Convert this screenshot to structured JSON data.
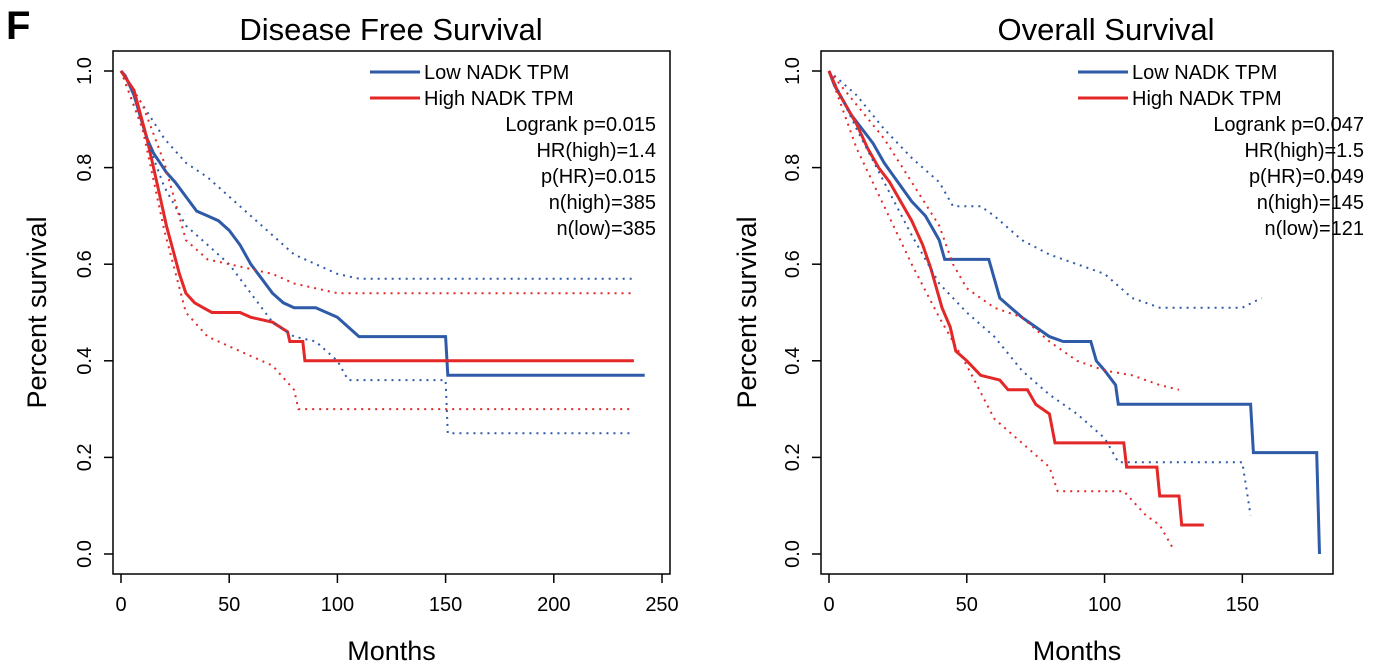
{
  "panel_label": "F",
  "colors": {
    "low": "#2e5aa8",
    "high": "#e42727"
  },
  "chart_data": [
    {
      "type": "line",
      "title": "Disease Free Survival",
      "xlabel": "Months",
      "ylabel": "Percent survival",
      "xlim": [
        0,
        250
      ],
      "ylim": [
        0,
        1
      ],
      "x_ticks": [
        "0",
        "50",
        "100",
        "150",
        "200",
        "250"
      ],
      "y_ticks": [
        "0.0",
        "0.2",
        "0.4",
        "0.6",
        "0.8",
        "1.0"
      ],
      "grid": false,
      "legend_position": "top-right",
      "stats": [
        "Logrank p=0.015",
        "HR(high)=1.4",
        "p(HR)=0.015",
        "n(high)=385",
        "n(low)=385"
      ],
      "series": [
        {
          "name": "Low NADK TPM",
          "style": "solid",
          "points": [
            [
              0,
              1
            ],
            [
              2,
              0.99
            ],
            [
              4,
              0.97
            ],
            [
              6,
              0.95
            ],
            [
              8,
              0.92
            ],
            [
              10,
              0.89
            ],
            [
              12,
              0.86
            ],
            [
              15,
              0.83
            ],
            [
              18,
              0.81
            ],
            [
              21,
              0.79
            ],
            [
              25,
              0.77
            ],
            [
              30,
              0.74
            ],
            [
              35,
              0.71
            ],
            [
              40,
              0.7
            ],
            [
              45,
              0.69
            ],
            [
              50,
              0.67
            ],
            [
              55,
              0.64
            ],
            [
              60,
              0.6
            ],
            [
              65,
              0.57
            ],
            [
              70,
              0.54
            ],
            [
              75,
              0.52
            ],
            [
              80,
              0.51
            ],
            [
              90,
              0.51
            ],
            [
              100,
              0.49
            ],
            [
              105,
              0.47
            ],
            [
              110,
              0.45
            ],
            [
              150,
              0.45
            ],
            [
              151,
              0.37
            ],
            [
              242,
              0.37
            ]
          ]
        },
        {
          "name": "High NADK TPM",
          "style": "solid",
          "points": [
            [
              0,
              1
            ],
            [
              3,
              0.98
            ],
            [
              6,
              0.96
            ],
            [
              9,
              0.91
            ],
            [
              12,
              0.86
            ],
            [
              15,
              0.8
            ],
            [
              18,
              0.74
            ],
            [
              21,
              0.68
            ],
            [
              24,
              0.63
            ],
            [
              27,
              0.58
            ],
            [
              30,
              0.54
            ],
            [
              34,
              0.52
            ],
            [
              38,
              0.51
            ],
            [
              42,
              0.5
            ],
            [
              55,
              0.5
            ],
            [
              60,
              0.49
            ],
            [
              70,
              0.48
            ],
            [
              77,
              0.46
            ],
            [
              78,
              0.44
            ],
            [
              84,
              0.44
            ],
            [
              85,
              0.4
            ],
            [
              237,
              0.4
            ]
          ]
        },
        {
          "name": "",
          "style": "dotted",
          "points": [
            [
              0,
              1
            ],
            [
              10,
              0.93
            ],
            [
              20,
              0.86
            ],
            [
              30,
              0.81
            ],
            [
              40,
              0.78
            ],
            [
              50,
              0.74
            ],
            [
              60,
              0.7
            ],
            [
              70,
              0.66
            ],
            [
              80,
              0.62
            ],
            [
              90,
              0.6
            ],
            [
              100,
              0.58
            ],
            [
              110,
              0.57
            ],
            [
              237,
              0.57
            ]
          ]
        },
        {
          "name": "",
          "style": "dotted",
          "points": [
            [
              0,
              1
            ],
            [
              10,
              0.88
            ],
            [
              20,
              0.76
            ],
            [
              30,
              0.68
            ],
            [
              40,
              0.64
            ],
            [
              50,
              0.6
            ],
            [
              60,
              0.54
            ],
            [
              70,
              0.48
            ],
            [
              80,
              0.45
            ],
            [
              90,
              0.44
            ],
            [
              100,
              0.4
            ],
            [
              105,
              0.36
            ],
            [
              150,
              0.36
            ],
            [
              151,
              0.25
            ],
            [
              237,
              0.25
            ]
          ]
        },
        {
          "name": "",
          "style": "dotted",
          "points": [
            [
              0,
              1
            ],
            [
              10,
              0.93
            ],
            [
              20,
              0.81
            ],
            [
              30,
              0.65
            ],
            [
              40,
              0.61
            ],
            [
              50,
              0.6
            ],
            [
              60,
              0.59
            ],
            [
              70,
              0.58
            ],
            [
              80,
              0.56
            ],
            [
              90,
              0.55
            ],
            [
              100,
              0.54
            ],
            [
              237,
              0.54
            ]
          ]
        },
        {
          "name": "",
          "style": "dotted",
          "points": [
            [
              0,
              1
            ],
            [
              10,
              0.88
            ],
            [
              20,
              0.67
            ],
            [
              30,
              0.5
            ],
            [
              40,
              0.45
            ],
            [
              50,
              0.43
            ],
            [
              60,
              0.41
            ],
            [
              70,
              0.39
            ],
            [
              80,
              0.34
            ],
            [
              82,
              0.3
            ],
            [
              237,
              0.3
            ]
          ]
        }
      ]
    },
    {
      "type": "line",
      "title": "Overall Survival",
      "xlabel": "Months",
      "ylabel": "Percent survival",
      "xlim": [
        0,
        180
      ],
      "ylim": [
        0,
        1
      ],
      "x_ticks": [
        "0",
        "50",
        "100",
        "150"
      ],
      "y_ticks": [
        "0.0",
        "0.2",
        "0.4",
        "0.6",
        "0.8",
        "1.0"
      ],
      "grid": false,
      "legend_position": "top-right",
      "stats": [
        "Logrank p=0.047",
        "HR(high)=1.5",
        "p(HR)=0.049",
        "n(high)=145",
        "n(low)=121"
      ],
      "series": [
        {
          "name": "Low NADK TPM",
          "style": "solid",
          "points": [
            [
              0,
              1
            ],
            [
              2,
              0.97
            ],
            [
              5,
              0.94
            ],
            [
              8,
              0.91
            ],
            [
              12,
              0.88
            ],
            [
              16,
              0.85
            ],
            [
              20,
              0.81
            ],
            [
              25,
              0.77
            ],
            [
              30,
              0.73
            ],
            [
              35,
              0.7
            ],
            [
              38,
              0.67
            ],
            [
              40,
              0.65
            ],
            [
              42,
              0.61
            ],
            [
              58,
              0.61
            ],
            [
              60,
              0.57
            ],
            [
              62,
              0.53
            ],
            [
              66,
              0.51
            ],
            [
              70,
              0.49
            ],
            [
              75,
              0.47
            ],
            [
              80,
              0.45
            ],
            [
              85,
              0.44
            ],
            [
              95,
              0.44
            ],
            [
              97,
              0.4
            ],
            [
              100,
              0.38
            ],
            [
              104,
              0.35
            ],
            [
              105,
              0.31
            ],
            [
              153,
              0.31
            ],
            [
              154,
              0.21
            ],
            [
              177,
              0.21
            ],
            [
              178,
              0
            ]
          ]
        },
        {
          "name": "High NADK TPM",
          "style": "solid",
          "points": [
            [
              0,
              1
            ],
            [
              3,
              0.96
            ],
            [
              6,
              0.93
            ],
            [
              10,
              0.89
            ],
            [
              14,
              0.84
            ],
            [
              18,
              0.8
            ],
            [
              22,
              0.77
            ],
            [
              26,
              0.73
            ],
            [
              30,
              0.69
            ],
            [
              34,
              0.64
            ],
            [
              37,
              0.59
            ],
            [
              39,
              0.55
            ],
            [
              41,
              0.51
            ],
            [
              44,
              0.47
            ],
            [
              46,
              0.42
            ],
            [
              50,
              0.4
            ],
            [
              55,
              0.37
            ],
            [
              62,
              0.36
            ],
            [
              65,
              0.34
            ],
            [
              72,
              0.34
            ],
            [
              75,
              0.31
            ],
            [
              80,
              0.29
            ],
            [
              82,
              0.23
            ],
            [
              107,
              0.23
            ],
            [
              108,
              0.18
            ],
            [
              119,
              0.18
            ],
            [
              120,
              0.12
            ],
            [
              127,
              0.12
            ],
            [
              128,
              0.06
            ],
            [
              136,
              0.06
            ]
          ]
        },
        {
          "name": "",
          "style": "dotted",
          "points": [
            [
              0,
              1
            ],
            [
              10,
              0.95
            ],
            [
              20,
              0.88
            ],
            [
              30,
              0.82
            ],
            [
              40,
              0.77
            ],
            [
              45,
              0.72
            ],
            [
              55,
              0.72
            ],
            [
              60,
              0.7
            ],
            [
              70,
              0.65
            ],
            [
              80,
              0.62
            ],
            [
              90,
              0.6
            ],
            [
              100,
              0.58
            ],
            [
              110,
              0.53
            ],
            [
              120,
              0.51
            ],
            [
              150,
              0.51
            ],
            [
              157,
              0.53
            ]
          ]
        },
        {
          "name": "",
          "style": "dotted",
          "points": [
            [
              0,
              1
            ],
            [
              10,
              0.88
            ],
            [
              20,
              0.77
            ],
            [
              30,
              0.66
            ],
            [
              40,
              0.56
            ],
            [
              50,
              0.5
            ],
            [
              60,
              0.45
            ],
            [
              70,
              0.38
            ],
            [
              80,
              0.33
            ],
            [
              90,
              0.29
            ],
            [
              100,
              0.24
            ],
            [
              105,
              0.19
            ],
            [
              150,
              0.19
            ],
            [
              153,
              0.08
            ]
          ]
        },
        {
          "name": "",
          "style": "dotted",
          "points": [
            [
              0,
              1
            ],
            [
              10,
              0.93
            ],
            [
              20,
              0.86
            ],
            [
              30,
              0.77
            ],
            [
              40,
              0.68
            ],
            [
              45,
              0.6
            ],
            [
              50,
              0.55
            ],
            [
              60,
              0.51
            ],
            [
              70,
              0.49
            ],
            [
              80,
              0.44
            ],
            [
              90,
              0.4
            ],
            [
              100,
              0.38
            ],
            [
              110,
              0.37
            ],
            [
              120,
              0.35
            ],
            [
              127,
              0.34
            ]
          ]
        },
        {
          "name": "",
          "style": "dotted",
          "points": [
            [
              0,
              1
            ],
            [
              10,
              0.84
            ],
            [
              20,
              0.72
            ],
            [
              30,
              0.6
            ],
            [
              40,
              0.49
            ],
            [
              50,
              0.39
            ],
            [
              60,
              0.28
            ],
            [
              70,
              0.23
            ],
            [
              80,
              0.18
            ],
            [
              83,
              0.13
            ],
            [
              107,
              0.13
            ],
            [
              115,
              0.08
            ],
            [
              120,
              0.06
            ],
            [
              125,
              0.01
            ]
          ]
        }
      ]
    }
  ]
}
